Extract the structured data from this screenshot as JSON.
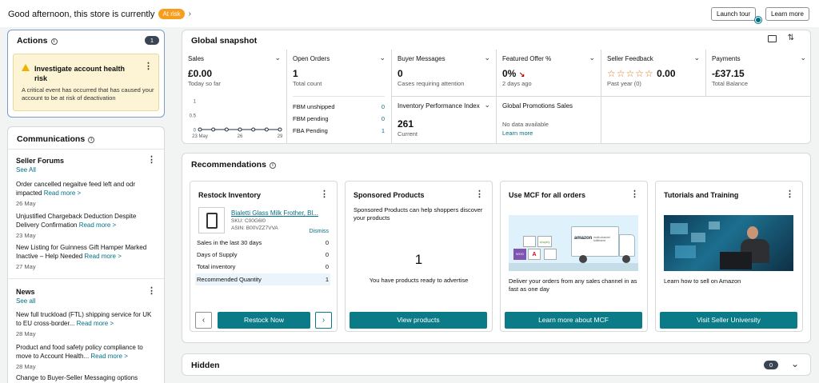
{
  "header": {
    "greeting": "Good afternoon, this store is currently",
    "status_badge": "At risk",
    "launch_tour": "Launch tour",
    "learn_more": "Learn more"
  },
  "actions": {
    "title": "Actions",
    "count": "1",
    "alert_title": "Investigate account health risk",
    "alert_body": "A critical event has occurred that has caused your account to be at risk of deactivation"
  },
  "communications": {
    "title": "Communications",
    "forums_title": "Seller Forums",
    "forums_see_all": "See All",
    "forums": [
      {
        "text": "Order cancelled negaitve feed left and odr impacted",
        "link": "Read more >",
        "date": "26 May"
      },
      {
        "text": "Unjustified Chargeback Deduction Despite Delivery Confirmation",
        "link": "Read more >",
        "date": "23 May"
      },
      {
        "text": "New Listing for Guinness Gift Hamper Marked Inactive – Help Needed",
        "link": "Read more >",
        "date": "27 May"
      }
    ],
    "news_title": "News",
    "news_see_all": "See all",
    "news": [
      {
        "text": "New full truckload (FTL) shipping service for UK to EU cross-border...",
        "link": "Read more >",
        "date": "28 May"
      },
      {
        "text": "Product and food safety policy compliance to move to Account Health...",
        "link": "Read more >",
        "date": "28 May"
      },
      {
        "text": "Change to Buyer-Seller Messaging options",
        "link": "",
        "date": ""
      }
    ]
  },
  "snapshot": {
    "title": "Global snapshot",
    "sales": {
      "label": "Sales",
      "value": "£0.00",
      "sub": "Today so far",
      "chart": {
        "y_ticks": [
          "1",
          "0.5",
          "0"
        ],
        "x_ticks": [
          "23 May",
          "26",
          "29"
        ]
      }
    },
    "open_orders": {
      "label": "Open Orders",
      "value": "1",
      "sub": "Total count",
      "rows": [
        {
          "label": "FBM unshipped",
          "value": "0"
        },
        {
          "label": "FBM pending",
          "value": "0"
        },
        {
          "label": "FBA Pending",
          "value": "1"
        }
      ]
    },
    "buyer_messages": {
      "label": "Buyer Messages",
      "value": "0",
      "sub": "Cases requiring attention"
    },
    "inventory": {
      "label": "Inventory Performance Index",
      "value": "261",
      "sub": "Current"
    },
    "featured_offer": {
      "label": "Featured Offer %",
      "value": "0%",
      "sub": "2 days ago"
    },
    "promotions": {
      "label": "Global Promotions Sales",
      "sub": "No data available",
      "link": "Learn more"
    },
    "feedback": {
      "label": "Seller Feedback",
      "stars": "☆☆☆☆☆",
      "value": "0.00",
      "sub": "Past year (0)"
    },
    "payments": {
      "label": "Payments",
      "value": "-£37.15",
      "sub": "Total Balance"
    }
  },
  "chart_data": {
    "type": "line",
    "x": [
      "23 May",
      "24 May",
      "25 May",
      "26 May",
      "27 May",
      "28 May",
      "29 May"
    ],
    "values": [
      0,
      0,
      0,
      0,
      0,
      0,
      0
    ],
    "ylim": [
      0,
      1
    ],
    "y_ticks": [
      "1",
      "0.5",
      "0"
    ],
    "x_ticks": [
      "23 May",
      "26",
      "29"
    ]
  },
  "recommendations": {
    "title": "Recommendations",
    "restock": {
      "title": "Restock Inventory",
      "product": "Bialetti Glass Milk Frother, Bl...",
      "sku": "SKU: C00G6I0",
      "asin": "ASIN: B00VZZ7VVA",
      "dismiss": "Dismiss",
      "rows": [
        {
          "label": "Sales in the last 30 days",
          "value": "0"
        },
        {
          "label": "Days of Supply",
          "value": "0"
        },
        {
          "label": "Total inventory",
          "value": "0"
        },
        {
          "label": "Recommended Quantity",
          "value": "1"
        }
      ],
      "button": "Restock Now"
    },
    "sponsored": {
      "title": "Sponsored Products",
      "desc": "Sponsored Products can help shoppers discover your products",
      "big_number": "1",
      "note": "You have products ready to advertise",
      "button": "View products"
    },
    "mcf": {
      "title": "Use MCF for all orders",
      "desc": "Deliver your orders from any sales channel in as fast as one day",
      "button": "Learn more about MCF",
      "truck_text": "amazon",
      "truck_sub": "multi-channel fulfillment",
      "box_labels": [
        "shopify",
        "A",
        "WOO"
      ]
    },
    "tutorials": {
      "title": "Tutorials and Training",
      "desc": "Learn how to sell on Amazon",
      "button": "Visit Seller University"
    }
  },
  "hidden": {
    "title": "Hidden",
    "count": "0"
  },
  "colors": {
    "teal": "#0b7b88",
    "risk": "#f89c1c",
    "alert_bg": "#fcf4d4",
    "link": "#007185"
  }
}
